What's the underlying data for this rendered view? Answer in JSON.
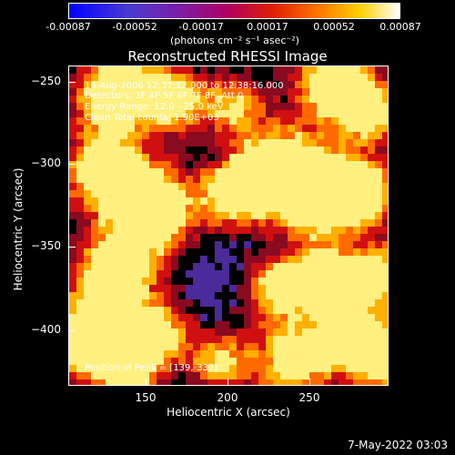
{
  "colorbar": {
    "ticks": [
      "-0.00087",
      "-0.00052",
      "-0.00017",
      "0.00017",
      "0.00052",
      "0.00087"
    ],
    "unit": "(photons cm⁻² s⁻¹ asec⁻²)"
  },
  "title": "Reconstructed RHESSI Image",
  "annotations": {
    "time_range": "16-Aug-2006 12:37:12.000 to 12:38:16.000",
    "detectors": "Detectors: 3F 4F 5F 6F 7F 8F, Att 0",
    "energy": "Energy Range: 12.0 - 25.0 keV",
    "clean": "Clean     Total counts: 1.90E+03",
    "peak": "Position of Peak = [139,-337]"
  },
  "axes": {
    "x_title": "Heliocentric X (arcsec)",
    "y_title": "Heliocentric Y (arcsec)",
    "x_ticks": [
      "150",
      "200",
      "250"
    ],
    "y_ticks": [
      "−250",
      "−300",
      "−350",
      "−400"
    ]
  },
  "timestamp": "7-May-2022 03:03",
  "colors": {
    "low": "#3a1a7a",
    "mid": "#d01010",
    "high": "#ffe040"
  }
}
